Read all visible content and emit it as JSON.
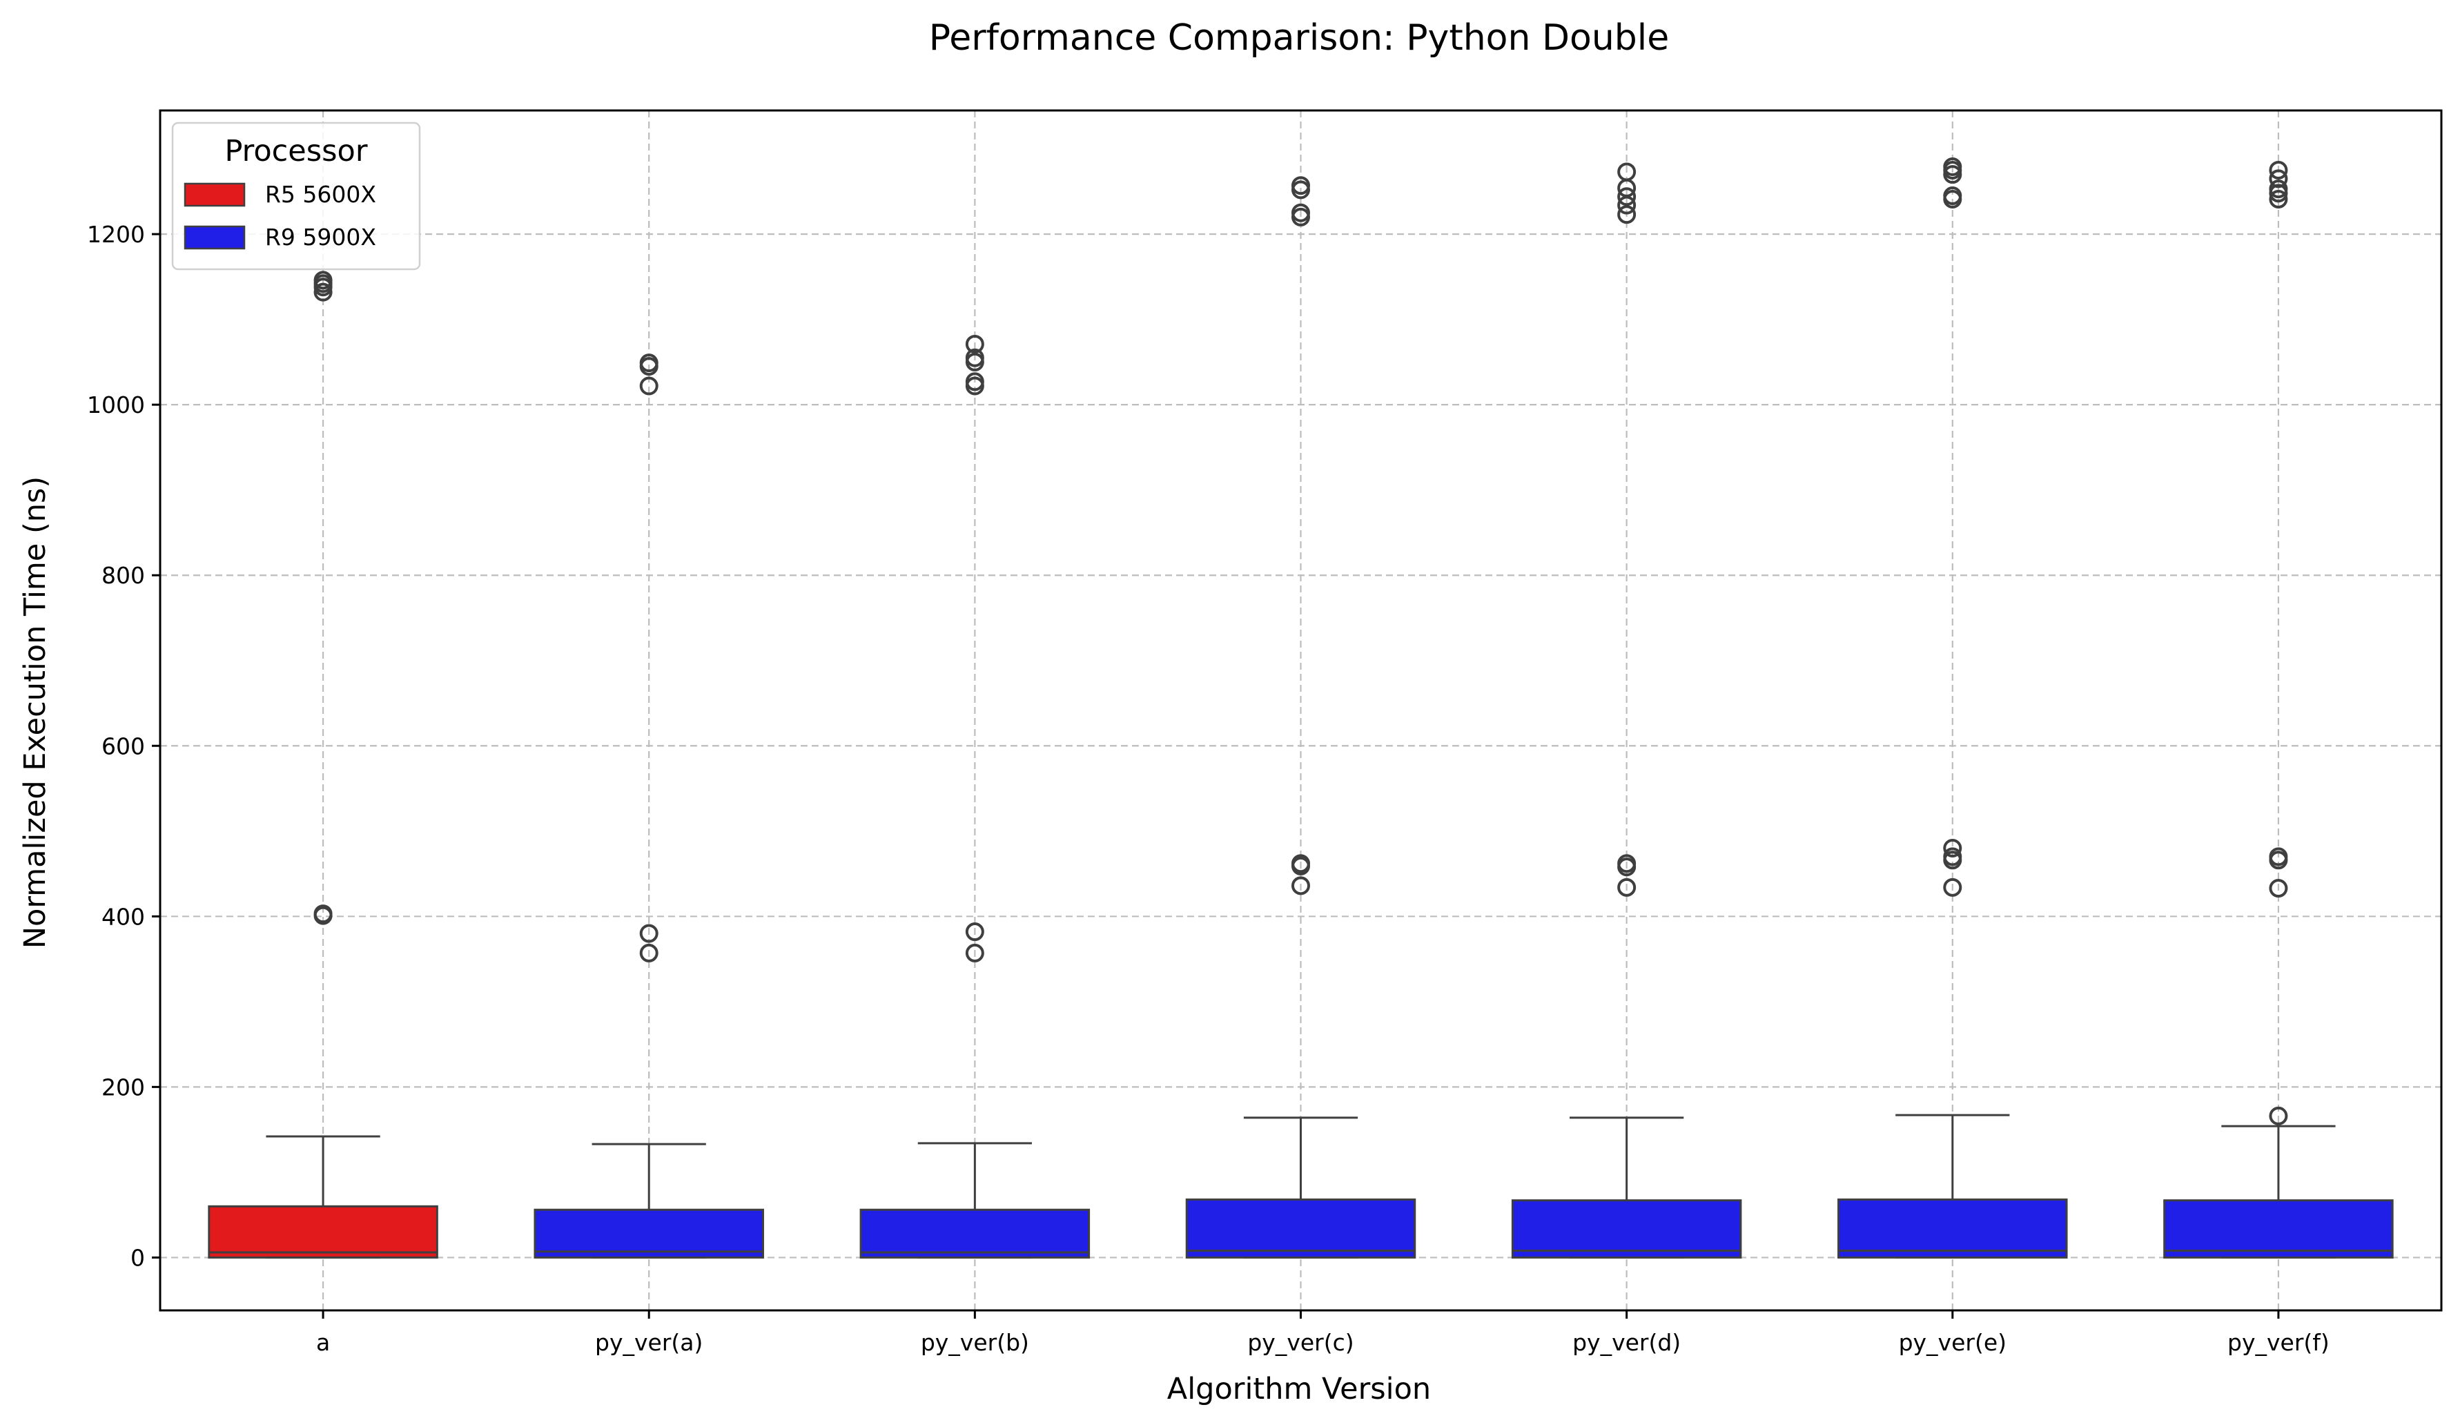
{
  "chart_data": {
    "type": "box",
    "title": "Performance Comparison: Python Double",
    "xlabel": "Algorithm Version",
    "ylabel": "Normalized Execution Time (ns)",
    "ylim": [
      -62,
      1345
    ],
    "yticks": [
      0,
      200,
      400,
      600,
      800,
      1000,
      1200
    ],
    "grid": true,
    "legend": {
      "title": "Processor",
      "position": "top-left",
      "entries": [
        {
          "label": "R5 5600X",
          "color": "#e31a1c"
        },
        {
          "label": "R9 5900X",
          "color": "#1f1fe8"
        }
      ]
    },
    "categories": [
      "a",
      "py_ver(a)",
      "py_ver(b)",
      "py_ver(c)",
      "py_ver(d)",
      "py_ver(e)",
      "py_ver(f)"
    ],
    "boxes": [
      {
        "category": "a",
        "processor": "R5 5600X",
        "whisker_low": 0,
        "q1": 0,
        "median": 6,
        "q3": 60,
        "whisker_high": 142,
        "outliers": [
          401,
          403,
          1132,
          1138,
          1142,
          1146
        ]
      },
      {
        "category": "py_ver(a)",
        "processor": "R9 5900X",
        "whisker_low": 0,
        "q1": 0,
        "median": 7,
        "q3": 56,
        "whisker_high": 133,
        "outliers": [
          357,
          380,
          1022,
          1045,
          1049
        ]
      },
      {
        "category": "py_ver(b)",
        "processor": "R9 5900X",
        "whisker_low": 0,
        "q1": 0,
        "median": 6,
        "q3": 56,
        "whisker_high": 134,
        "outliers": [
          357,
          382,
          1022,
          1027,
          1050,
          1055,
          1071
        ]
      },
      {
        "category": "py_ver(c)",
        "processor": "R9 5900X",
        "whisker_low": 0,
        "q1": 0,
        "median": 8,
        "q3": 68,
        "whisker_high": 164,
        "outliers": [
          436,
          459,
          462,
          1220,
          1225,
          1252,
          1257
        ]
      },
      {
        "category": "py_ver(d)",
        "processor": "R9 5900X",
        "whisker_low": 0,
        "q1": 0,
        "median": 8,
        "q3": 67,
        "whisker_high": 164,
        "outliers": [
          434,
          458,
          462,
          1223,
          1234,
          1244,
          1254,
          1273
        ]
      },
      {
        "category": "py_ver(e)",
        "processor": "R9 5900X",
        "whisker_low": 0,
        "q1": 0,
        "median": 8,
        "q3": 68,
        "whisker_high": 167,
        "outliers": [
          434,
          466,
          470,
          480,
          1241,
          1245,
          1270,
          1275,
          1279
        ]
      },
      {
        "category": "py_ver(f)",
        "processor": "R9 5900X",
        "whisker_low": 0,
        "q1": 0,
        "median": 8,
        "q3": 67,
        "whisker_high": 154,
        "outliers": [
          166,
          433,
          466,
          470,
          1241,
          1248,
          1253,
          1265,
          1275
        ]
      }
    ],
    "colors": {
      "box_edge": "#3f3f3f",
      "grid": "#bdbdbd",
      "frame": "#000000"
    }
  }
}
